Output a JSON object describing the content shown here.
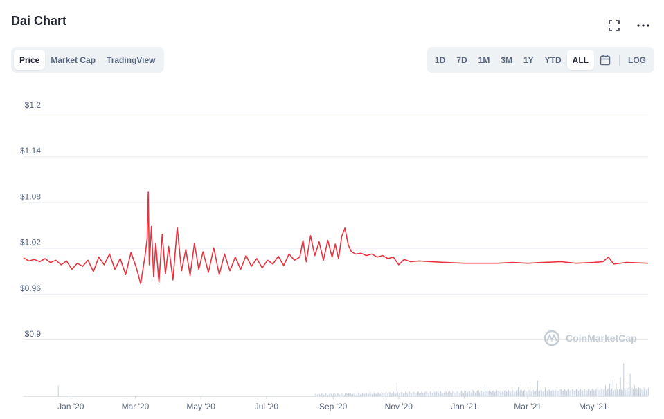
{
  "page": {
    "title": "Dai Chart"
  },
  "tabs": {
    "left": [
      "Price",
      "Market Cap",
      "TradingView"
    ],
    "left_active": "Price"
  },
  "ranges": {
    "items": [
      "1D",
      "7D",
      "1M",
      "3M",
      "1Y",
      "YTD",
      "ALL"
    ],
    "active": "ALL",
    "log_label": "LOG"
  },
  "icons": {
    "fullscreen": "fullscreen-icon",
    "more": "more-icon",
    "calendar": "calendar-icon"
  },
  "watermark": "CoinMarketCap",
  "colors": {
    "line": "#e8323e",
    "grid": "#e9ecf1",
    "volume": "#c2cbd9",
    "axis_text": "#58667e",
    "watermark": "#c6ccd6"
  },
  "chart_data": {
    "type": "line",
    "y_ticks": [
      "$1.2",
      "$1.14",
      "$1.08",
      "$1.02",
      "$0.96",
      "$0.9"
    ],
    "y_tick_values": [
      1.2,
      1.14,
      1.08,
      1.02,
      0.96,
      0.9
    ],
    "ylim": [
      0.9,
      1.2
    ],
    "x_ticks": [
      "Jan '20",
      "Mar '20",
      "May '20",
      "Jul '20",
      "Sep '20",
      "Nov '20",
      "Jan '21",
      "Mar '21",
      "May '21"
    ],
    "x_tick_dates": [
      "2020-01-01",
      "2020-03-01",
      "2020-05-01",
      "2020-07-01",
      "2020-09-01",
      "2020-11-01",
      "2021-01-01",
      "2021-03-01",
      "2021-05-01"
    ],
    "xlim": [
      "2019-11-18",
      "2021-06-21"
    ],
    "series": [
      {
        "x": [
          "2019-11-18",
          "2019-11-23",
          "2019-11-28",
          "2019-12-03",
          "2019-12-08",
          "2019-12-13",
          "2019-12-18",
          "2019-12-23",
          "2019-12-28",
          "2020-01-02",
          "2020-01-07",
          "2020-01-12",
          "2020-01-17",
          "2020-01-22",
          "2020-01-27",
          "2020-02-01",
          "2020-02-06",
          "2020-02-11",
          "2020-02-16",
          "2020-02-21",
          "2020-02-26",
          "2020-03-02",
          "2020-03-06",
          "2020-03-10",
          "2020-03-12",
          "2020-03-13",
          "2020-03-14",
          "2020-03-16",
          "2020-03-18",
          "2020-03-20",
          "2020-03-23",
          "2020-03-26",
          "2020-03-29",
          "2020-04-01",
          "2020-04-05",
          "2020-04-09",
          "2020-04-13",
          "2020-04-17",
          "2020-04-21",
          "2020-04-25",
          "2020-04-29",
          "2020-05-03",
          "2020-05-08",
          "2020-05-13",
          "2020-05-18",
          "2020-05-23",
          "2020-05-28",
          "2020-06-02",
          "2020-06-07",
          "2020-06-12",
          "2020-06-17",
          "2020-06-22",
          "2020-06-27",
          "2020-07-02",
          "2020-07-07",
          "2020-07-12",
          "2020-07-17",
          "2020-07-22",
          "2020-07-27",
          "2020-08-01",
          "2020-08-04",
          "2020-08-07",
          "2020-08-11",
          "2020-08-15",
          "2020-08-19",
          "2020-08-23",
          "2020-08-27",
          "2020-08-31",
          "2020-09-03",
          "2020-09-06",
          "2020-09-09",
          "2020-09-12",
          "2020-09-15",
          "2020-09-18",
          "2020-09-22",
          "2020-09-27",
          "2020-10-02",
          "2020-10-07",
          "2020-10-12",
          "2020-10-17",
          "2020-10-22",
          "2020-10-27",
          "2020-11-01",
          "2020-11-06",
          "2020-11-12",
          "2020-11-20",
          "2020-12-01",
          "2020-12-15",
          "2021-01-01",
          "2021-01-15",
          "2021-02-01",
          "2021-02-15",
          "2021-03-01",
          "2021-03-15",
          "2021-04-01",
          "2021-04-15",
          "2021-05-01",
          "2021-05-10",
          "2021-05-15",
          "2021-05-20",
          "2021-06-01",
          "2021-06-21"
        ],
        "values": [
          1.007,
          1.003,
          1.005,
          1.002,
          1.006,
          1.001,
          1.004,
          0.998,
          1.003,
          0.992,
          1.0,
          0.996,
          1.004,
          0.989,
          1.008,
          0.998,
          1.012,
          0.992,
          1.006,
          0.985,
          1.014,
          0.994,
          0.973,
          1.009,
          1.032,
          1.094,
          0.998,
          1.048,
          0.982,
          1.026,
          0.975,
          1.038,
          0.986,
          1.022,
          0.978,
          1.047,
          0.99,
          1.018,
          0.984,
          1.026,
          0.992,
          1.015,
          0.988,
          1.02,
          0.985,
          1.012,
          0.99,
          1.008,
          0.992,
          1.01,
          0.996,
          1.006,
          0.994,
          1.004,
          0.999,
          1.009,
          0.997,
          1.012,
          1.004,
          1.008,
          1.03,
          1.002,
          1.036,
          1.01,
          1.028,
          1.004,
          1.03,
          1.008,
          1.025,
          1.006,
          1.035,
          1.046,
          1.024,
          1.015,
          1.012,
          1.013,
          1.01,
          1.012,
          1.008,
          1.01,
          1.006,
          1.008,
          0.998,
          1.005,
          1.002,
          1.003,
          1.002,
          1.001,
          1.0,
          1.0,
          1.0,
          1.001,
          1.0,
          1.001,
          1.002,
          1.0,
          1.001,
          1.002,
          1.008,
          0.999,
          1.001,
          1.0
        ]
      }
    ],
    "volume_note": "volume bars (relative heights)",
    "volume": [
      {
        "x": "2019-12-20",
        "v": 0.22
      },
      {
        "x": "2020-09-05",
        "v": 0.05
      },
      {
        "x": "2020-09-15",
        "v": 0.06
      },
      {
        "x": "2020-10-05",
        "v": 0.05
      },
      {
        "x": "2020-10-30",
        "v": 0.28
      },
      {
        "x": "2020-11-20",
        "v": 0.05
      },
      {
        "x": "2020-12-10",
        "v": 0.06
      },
      {
        "x": "2020-12-28",
        "v": 0.09
      },
      {
        "x": "2021-01-08",
        "v": 0.15
      },
      {
        "x": "2021-01-14",
        "v": 0.12
      },
      {
        "x": "2021-01-20",
        "v": 0.24
      },
      {
        "x": "2021-01-28",
        "v": 0.1
      },
      {
        "x": "2021-02-08",
        "v": 0.12
      },
      {
        "x": "2021-02-20",
        "v": 0.2
      },
      {
        "x": "2021-02-25",
        "v": 0.12
      },
      {
        "x": "2021-03-03",
        "v": 0.22
      },
      {
        "x": "2021-03-10",
        "v": 0.32
      },
      {
        "x": "2021-03-17",
        "v": 0.18
      },
      {
        "x": "2021-03-24",
        "v": 0.12
      },
      {
        "x": "2021-04-05",
        "v": 0.1
      },
      {
        "x": "2021-04-15",
        "v": 0.14
      },
      {
        "x": "2021-04-25",
        "v": 0.1
      },
      {
        "x": "2021-05-05",
        "v": 0.12
      },
      {
        "x": "2021-05-12",
        "v": 0.22
      },
      {
        "x": "2021-05-16",
        "v": 0.26
      },
      {
        "x": "2021-05-19",
        "v": 0.35
      },
      {
        "x": "2021-05-22",
        "v": 0.26
      },
      {
        "x": "2021-05-26",
        "v": 0.4
      },
      {
        "x": "2021-05-29",
        "v": 0.68
      },
      {
        "x": "2021-06-01",
        "v": 0.28
      },
      {
        "x": "2021-06-04",
        "v": 0.46
      },
      {
        "x": "2021-06-08",
        "v": 0.22
      },
      {
        "x": "2021-06-12",
        "v": 0.18
      },
      {
        "x": "2021-06-17",
        "v": 0.12
      }
    ]
  }
}
